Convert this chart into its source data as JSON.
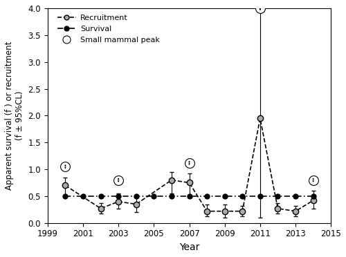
{
  "years": [
    2000,
    2001,
    2002,
    2003,
    2004,
    2005,
    2006,
    2007,
    2008,
    2009,
    2010,
    2011,
    2012,
    2013,
    2014
  ],
  "recruitment": [
    0.7,
    null,
    0.27,
    0.4,
    0.35,
    null,
    0.8,
    0.75,
    0.22,
    0.22,
    0.22,
    1.95,
    0.27,
    0.22,
    0.42
  ],
  "recruitment_upper_err": [
    0.15,
    null,
    0.1,
    0.15,
    0.15,
    null,
    0.15,
    0.18,
    0.13,
    0.13,
    0.1,
    2.05,
    0.1,
    0.1,
    0.18
  ],
  "recruitment_lower_err": [
    0.22,
    null,
    0.09,
    0.13,
    0.15,
    null,
    0.25,
    0.23,
    0.1,
    0.12,
    0.1,
    1.85,
    0.09,
    0.1,
    0.15
  ],
  "survival": [
    0.5,
    0.5,
    0.5,
    0.5,
    0.5,
    0.5,
    0.5,
    0.5,
    0.5,
    0.5,
    0.5,
    0.5,
    0.5,
    0.5,
    0.5
  ],
  "survival_upper_err": [
    0.03,
    0.03,
    0.03,
    0.03,
    0.03,
    0.03,
    0.03,
    0.03,
    0.03,
    0.03,
    0.03,
    0.03,
    0.03,
    0.03,
    0.03
  ],
  "survival_lower_err": [
    0.03,
    0.03,
    0.03,
    0.03,
    0.03,
    0.03,
    0.03,
    0.03,
    0.03,
    0.03,
    0.03,
    0.03,
    0.03,
    0.03,
    0.03
  ],
  "small_mammal_peaks": [
    2000,
    2003,
    2007,
    2011,
    2014
  ],
  "small_mammal_peak_values": [
    1.05,
    0.8,
    1.12,
    4.0,
    0.8
  ],
  "recruitment_color": "#aaaaaa",
  "survival_color": "#000000",
  "xlim": [
    1999,
    2015
  ],
  "ylim": [
    0.0,
    4.0
  ],
  "xlabel": "Year",
  "ylabel": "Apparent survival (f ) or recruitment\n(f ± 95%CL)",
  "xticks": [
    1999,
    2001,
    2003,
    2005,
    2007,
    2009,
    2011,
    2013,
    2015
  ],
  "yticks": [
    0.0,
    0.5,
    1.0,
    1.5,
    2.0,
    2.5,
    3.0,
    3.5,
    4.0
  ],
  "legend_recruitment": "Recruitment",
  "legend_survival": "Survival",
  "legend_peak": "Small mammal peak",
  "figwidth": 5.0,
  "figheight": 3.72,
  "dpi": 100
}
